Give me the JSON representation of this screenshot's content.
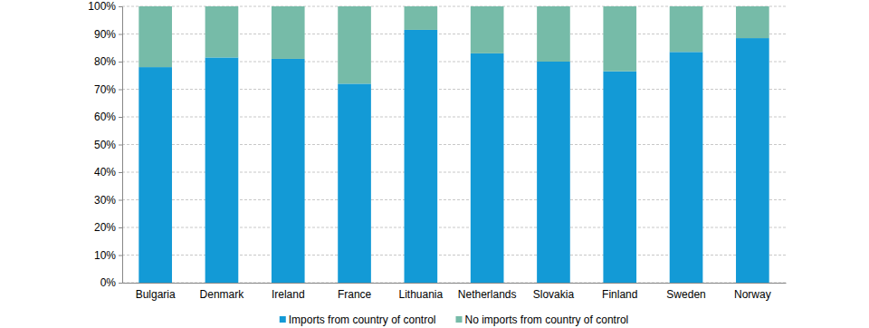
{
  "chart_data": {
    "type": "bar",
    "stacked": true,
    "grid": true,
    "legend": "bottom",
    "categories": [
      "Bulgaria",
      "Denmark",
      "Ireland",
      "France",
      "Lithuania",
      "Netherlands",
      "Slovakia",
      "Finland",
      "Sweden",
      "Norway"
    ],
    "series": [
      {
        "name": "Imports from country of control",
        "color": "#139ad6",
        "values": [
          78,
          81.5,
          81,
          72,
          91.5,
          83,
          80,
          76.5,
          83.5,
          88.5
        ]
      },
      {
        "name": "No imports from country of control",
        "color": "#76bba8",
        "values": [
          22,
          18.5,
          19,
          28,
          8.5,
          17,
          20,
          23.5,
          16.5,
          11.5
        ]
      }
    ],
    "ylim": [
      0,
      100
    ],
    "yticks": [
      {
        "value": 0,
        "label": "0%"
      },
      {
        "value": 10,
        "label": "10%"
      },
      {
        "value": 20,
        "label": "20%"
      },
      {
        "value": 30,
        "label": "30%"
      },
      {
        "value": 40,
        "label": "40%"
      },
      {
        "value": 50,
        "label": "50%"
      },
      {
        "value": 60,
        "label": "60%"
      },
      {
        "value": 70,
        "label": "70%"
      },
      {
        "value": 80,
        "label": "80%"
      },
      {
        "value": 90,
        "label": "90%"
      },
      {
        "value": 100,
        "label": "100%"
      }
    ]
  }
}
